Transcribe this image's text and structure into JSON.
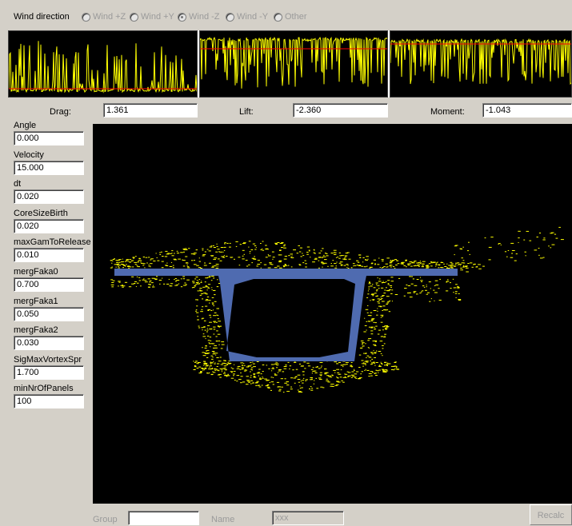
{
  "wind": {
    "label": "Wind direction",
    "options": [
      "Wind +Z",
      "Wind +Y",
      "Wind -Z",
      "Wind -Y",
      "Other"
    ],
    "selected": "Wind -Z"
  },
  "forces": {
    "drag_label": "Drag:",
    "drag_value": "1.361",
    "lift_label": "Lift:",
    "lift_value": "-2.360",
    "moment_label": "Moment:",
    "moment_value": "-1.043"
  },
  "params": [
    {
      "label": "Angle",
      "value": "0.000"
    },
    {
      "label": "Velocity",
      "value": "15.000"
    },
    {
      "label": "dt",
      "value": "0.020"
    },
    {
      "label": "CoreSizeBirth",
      "value": "0.020"
    },
    {
      "label": "maxGamToRelease",
      "value": "0.010"
    },
    {
      "label": "mergFaka0",
      "value": "0.700"
    },
    {
      "label": "mergFaka1",
      "value": "0.050"
    },
    {
      "label": "mergFaka2",
      "value": "0.030"
    },
    {
      "label": "SigMaxVortexSpr",
      "value": "1.700"
    },
    {
      "label": "minNrOfPanels",
      "value": "100"
    }
  ],
  "bottom": {
    "group_label": "Group",
    "group_value": "",
    "name_label": "Name",
    "name_value": "xxx",
    "recalc_label": "Recalc"
  },
  "colors": {
    "trace": "#ffff00",
    "mean_line": "#ff0000",
    "section": "#4f6bb0",
    "vortex": "#ffff00",
    "background": "#000000"
  }
}
